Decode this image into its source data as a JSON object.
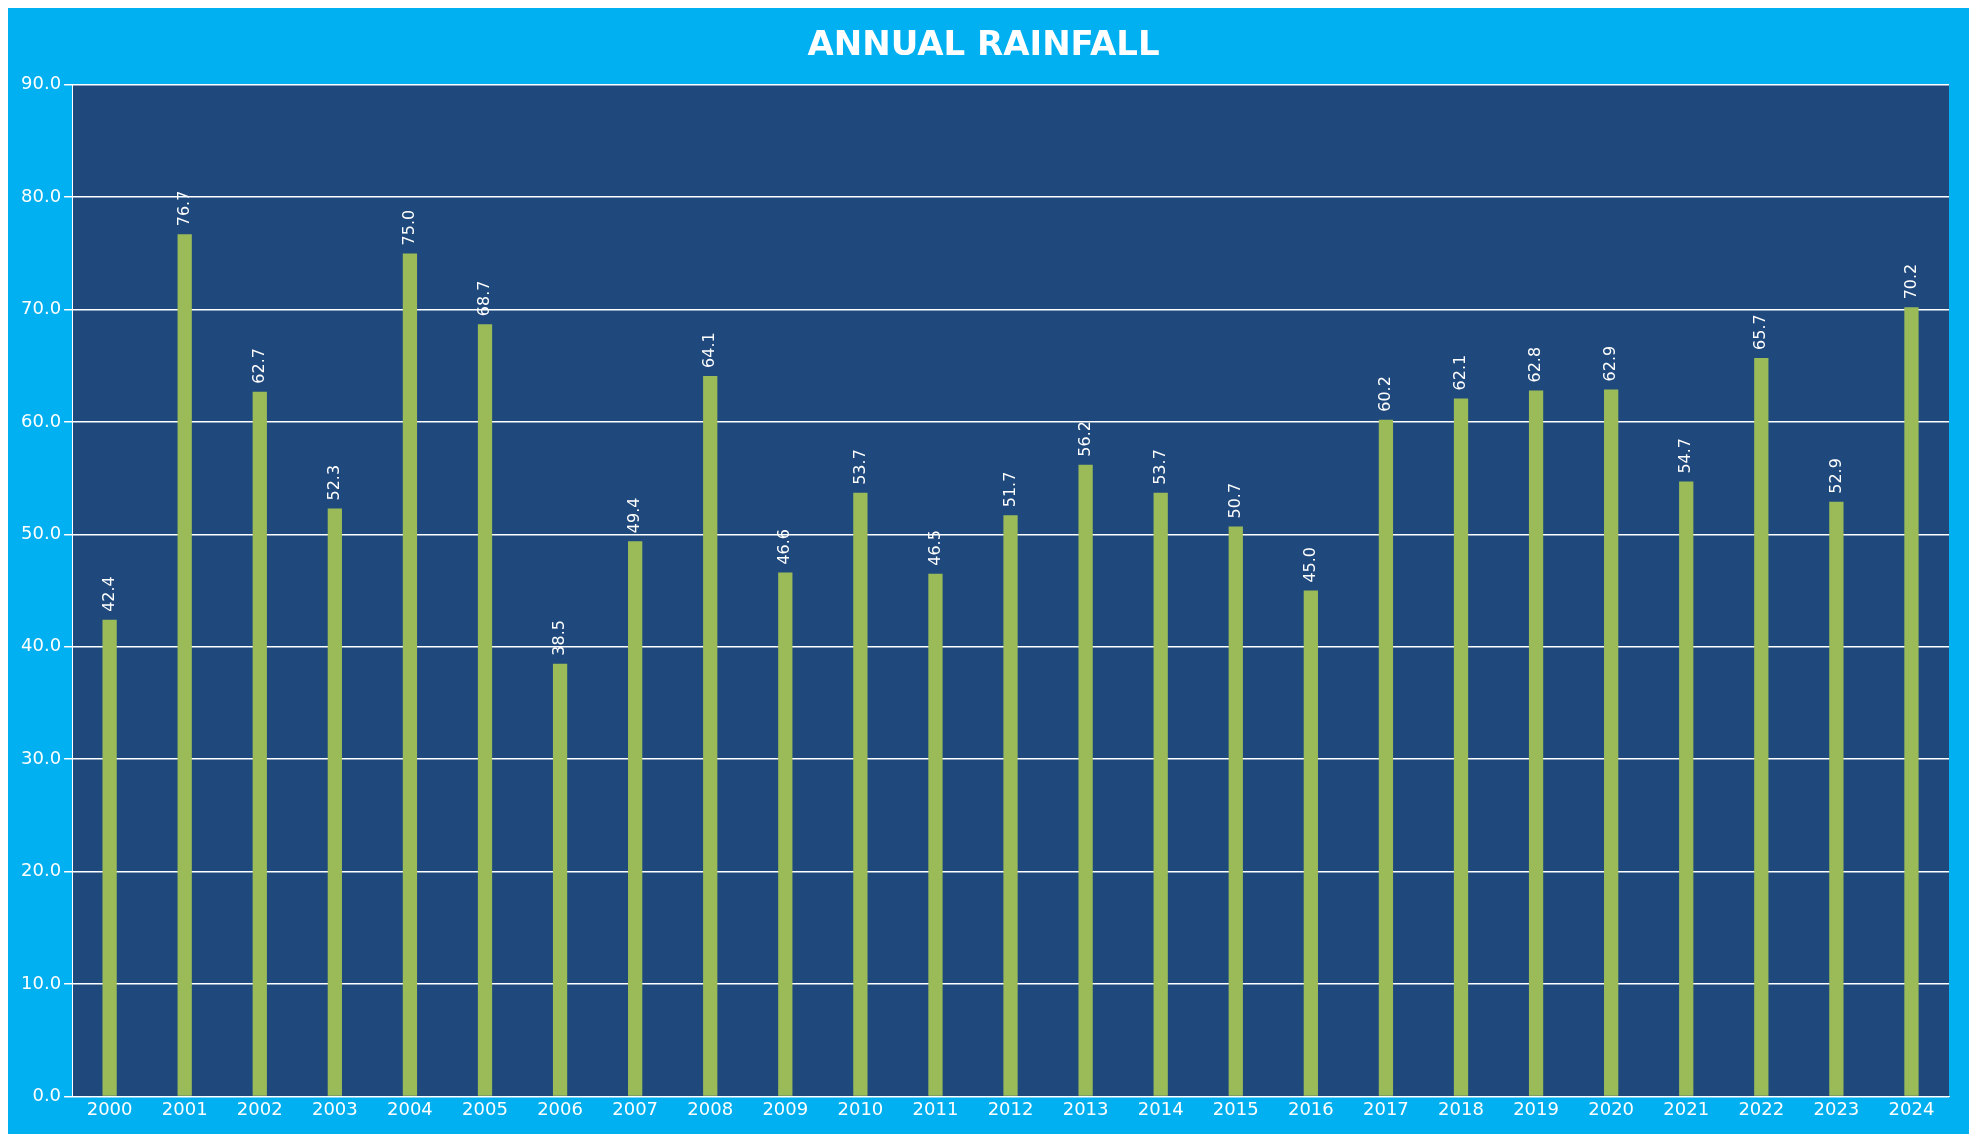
{
  "chart_data": {
    "type": "bar",
    "title": "ANNUAL RAINFALL",
    "categories": [
      "2000",
      "2001",
      "2002",
      "2003",
      "2004",
      "2005",
      "2006",
      "2007",
      "2008",
      "2009",
      "2010",
      "2011",
      "2012",
      "2013",
      "2014",
      "2015",
      "2016",
      "2017",
      "2018",
      "2019",
      "2020",
      "2021",
      "2022",
      "2023",
      "2024"
    ],
    "values": [
      42.4,
      76.7,
      62.7,
      52.3,
      75.0,
      68.7,
      38.5,
      49.4,
      64.1,
      46.6,
      53.7,
      46.5,
      51.7,
      56.2,
      53.7,
      50.7,
      45.0,
      60.2,
      62.1,
      62.8,
      62.9,
      54.7,
      65.7,
      52.9,
      70.2
    ],
    "value_labels": [
      "42.4",
      "76.7",
      "62.7",
      "52.3",
      "75.0",
      "68.7",
      "38.5",
      "49.4",
      "64.1",
      "46.6",
      "53.7",
      "46.5",
      "51.7",
      "56.2",
      "53.7",
      "50.7",
      "45.0",
      "60.2",
      "62.1",
      "62.8",
      "62.9",
      "54.7",
      "65.7",
      "52.9",
      "70.2"
    ],
    "color": "#9bbb59",
    "ylim": [
      0,
      90
    ],
    "yticks": [
      {
        "value": 0,
        "label": "0.0"
      },
      {
        "value": 10,
        "label": "10.0"
      },
      {
        "value": 20,
        "label": "20.0"
      },
      {
        "value": 30,
        "label": "30.0"
      },
      {
        "value": 40,
        "label": "40.0"
      },
      {
        "value": 50,
        "label": "50.0"
      },
      {
        "value": 60,
        "label": "60.0"
      },
      {
        "value": 70,
        "label": "70.0"
      },
      {
        "value": 80,
        "label": "80.0"
      },
      {
        "value": 90,
        "label": "90.0"
      }
    ],
    "grid": "y"
  }
}
